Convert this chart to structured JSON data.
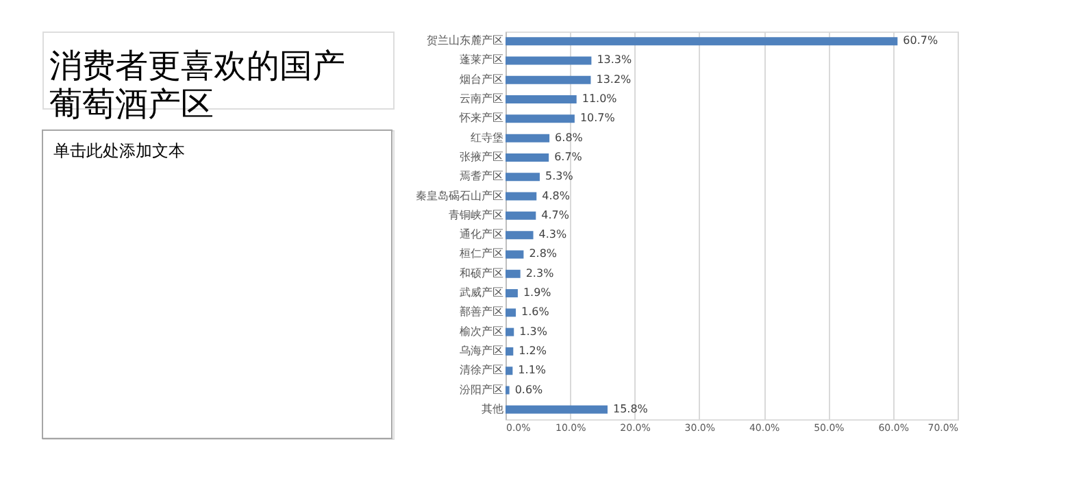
{
  "chart_data": {
    "type": "bar",
    "orientation": "horizontal",
    "title": "消费者更喜欢的国产葡萄酒产区",
    "annotations": [
      "单击此处添加文本"
    ],
    "categories": [
      "贺兰山东麓产区",
      "蓬莱产区",
      "烟台产区",
      "云南产区",
      "怀来产区",
      "红寺堡",
      "张掖产区",
      "焉耆产区",
      "秦皇岛碣石山产区",
      "青铜峡产区",
      "通化产区",
      "桓仁产区",
      "和硕产区",
      "武威产区",
      "鄯善产区",
      "榆次产区",
      "乌海产区",
      "清徐产区",
      "汾阳产区",
      "其他"
    ],
    "values": [
      60.7,
      13.3,
      13.2,
      11.0,
      10.7,
      6.8,
      6.7,
      5.3,
      4.8,
      4.7,
      4.3,
      2.8,
      2.3,
      1.9,
      1.6,
      1.3,
      1.2,
      1.1,
      0.6,
      15.8
    ],
    "value_labels": [
      "60.7%",
      "13.3%",
      "13.2%",
      "11.0%",
      "10.7%",
      "6.8%",
      "6.7%",
      "5.3%",
      "4.8%",
      "4.7%",
      "4.3%",
      "2.8%",
      "2.3%",
      "1.9%",
      "1.6%",
      "1.3%",
      "1.2%",
      "1.1%",
      "0.6%",
      "15.8%"
    ],
    "color": "#4f81bd",
    "xlim": [
      0,
      70
    ],
    "xticks": [
      {
        "value": 0,
        "label": "0.0%"
      },
      {
        "value": 10,
        "label": "10.0%"
      },
      {
        "value": 20,
        "label": "20.0%"
      },
      {
        "value": 30,
        "label": "30.0%"
      },
      {
        "value": 40,
        "label": "40.0%"
      },
      {
        "value": 50,
        "label": "50.0%"
      },
      {
        "value": 60,
        "label": "60.0%"
      },
      {
        "value": 70,
        "label": "70.0%"
      }
    ],
    "grid": "x"
  }
}
